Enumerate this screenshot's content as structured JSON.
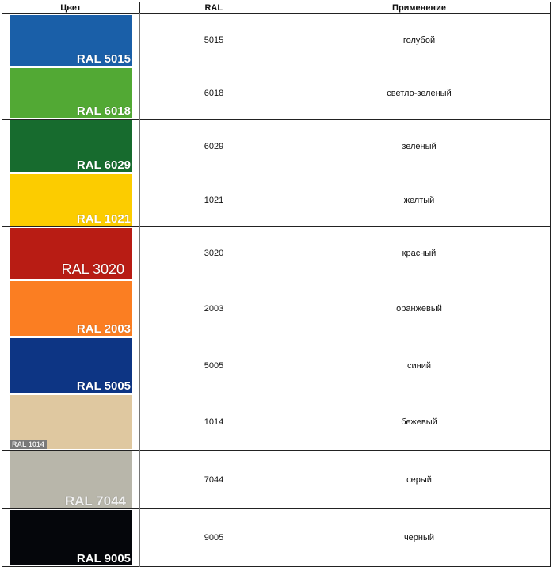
{
  "headers": [
    "Цвет",
    "RAL",
    "Применение"
  ],
  "rows": [
    {
      "swatch": "#1a5fa8",
      "label": "RAL 5015",
      "ral": "5015",
      "use": "голубой",
      "h": 67,
      "style": ""
    },
    {
      "swatch": "#52a934",
      "label": "RAL 6018",
      "ral": "6018",
      "use": "светло-зеленый",
      "h": 66,
      "style": ""
    },
    {
      "swatch": "#176b2e",
      "label": "RAL 6029",
      "ral": "6029",
      "use": "зеленый",
      "h": 68,
      "style": ""
    },
    {
      "swatch": "#fccc00",
      "label": "RAL 1021",
      "ral": "1021",
      "use": "желтый",
      "h": 68,
      "style": ""
    },
    {
      "swatch": "#b81c14",
      "label": "RAL 3020",
      "ral": "3020",
      "use": "красный",
      "h": 67,
      "style": "plain"
    },
    {
      "swatch": "#fb7e22",
      "label": "RAL 2003",
      "ral": "2003",
      "use": "оранжевый",
      "h": 72,
      "style": ""
    },
    {
      "swatch": "#0d3584",
      "label": "RAL 5005",
      "ral": "5005",
      "use": "синий",
      "h": 72,
      "style": ""
    },
    {
      "swatch": "#dfc8a0",
      "label": "RAL 1014",
      "ral": "1014",
      "use": "бежевый",
      "h": 71,
      "style": "small"
    },
    {
      "swatch": "#b8b6aa",
      "label": "RAL 7044",
      "ral": "7044",
      "use": "серый",
      "h": 74,
      "style": "light"
    },
    {
      "swatch": "#05060b",
      "label": "RAL 9005",
      "ral": "9005",
      "use": "черный",
      "h": 73,
      "style": ""
    }
  ]
}
